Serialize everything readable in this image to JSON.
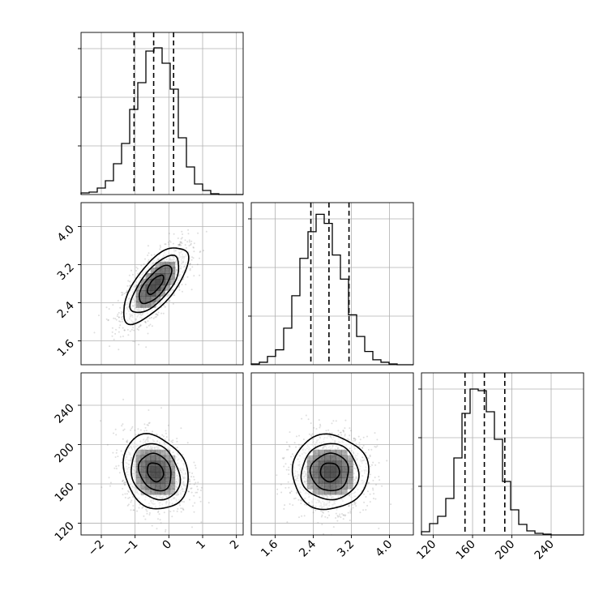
{
  "chart_data": {
    "type": "corner",
    "parameters": [
      {
        "id": "p0",
        "range": [
          -2.6,
          2.2
        ],
        "ticks": [
          -2,
          -1,
          0,
          1,
          2
        ],
        "tick_labels": [
          "−2",
          "−1",
          "0",
          "1",
          "2"
        ]
      },
      {
        "id": "p1",
        "range": [
          1.1,
          4.5
        ],
        "ticks": [
          1.6,
          2.4,
          3.2,
          4.0
        ],
        "tick_labels": [
          "1.6",
          "2.4",
          "3.2",
          "4.0"
        ]
      },
      {
        "id": "p2",
        "range": [
          108,
          273
        ],
        "ticks": [
          120,
          160,
          200,
          240
        ],
        "tick_labels": [
          "120",
          "160",
          "200",
          "240"
        ]
      }
    ],
    "histograms": [
      {
        "param": 0,
        "edges": [
          -2.6,
          -2.36,
          -2.12,
          -1.88,
          -1.64,
          -1.4,
          -1.16,
          -0.92,
          -0.68,
          -0.44,
          -0.2,
          0.04,
          0.28,
          0.52,
          0.76,
          1.0,
          1.24,
          1.48,
          1.72,
          1.96,
          2.2
        ],
        "counts": [
          2,
          3,
          8,
          17,
          38,
          63,
          105,
          138,
          177,
          181,
          162,
          130,
          70,
          34,
          13,
          5,
          1,
          0,
          0,
          0
        ],
        "quantiles": [
          -1.03,
          -0.45,
          0.14
        ],
        "ymax": 200
      },
      {
        "param": 1,
        "edges": [
          1.1,
          1.27,
          1.44,
          1.61,
          1.78,
          1.95,
          2.12,
          2.29,
          2.46,
          2.63,
          2.8,
          2.97,
          3.14,
          3.31,
          3.48,
          3.65,
          3.82,
          3.99,
          4.16,
          4.33,
          4.5
        ],
        "counts": [
          1,
          3,
          10,
          18,
          44,
          83,
          128,
          160,
          181,
          170,
          132,
          103,
          60,
          34,
          16,
          6,
          3,
          1,
          0,
          0
        ],
        "quantiles": [
          2.35,
          2.73,
          3.15
        ],
        "ymax": 195
      },
      {
        "param": 2,
        "edges": [
          108,
          116.25,
          124.5,
          132.75,
          141,
          149.25,
          157.5,
          165.75,
          174,
          182.25,
          190.5,
          198.75,
          207,
          215.25,
          223.5,
          231.75,
          240,
          248.25,
          256.5,
          264.75,
          273
        ],
        "counts": [
          4,
          14,
          23,
          45,
          95,
          150,
          180,
          178,
          152,
          118,
          66,
          31,
          13,
          5,
          2,
          1,
          0,
          0,
          0,
          0
        ],
        "quantiles": [
          152.3,
          172.0,
          192.8
        ],
        "ymax": 200
      }
    ],
    "pairs": [
      {
        "x": 0,
        "y": 1,
        "center": [
          -0.4,
          2.78
        ],
        "sigma": [
          0.48,
          0.4
        ],
        "rho": 0.7
      },
      {
        "x": 0,
        "y": 2,
        "center": [
          -0.4,
          172
        ],
        "sigma": [
          0.48,
          19
        ],
        "rho": -0.2
      },
      {
        "x": 1,
        "y": 2,
        "center": [
          2.75,
          172
        ],
        "sigma": [
          0.4,
          19
        ],
        "rho": 0.0
      }
    ],
    "contour_levels_sigma": [
      0.5,
      1.0,
      1.5,
      2.0
    ],
    "grid": true,
    "colors": {
      "line": "#000000",
      "points": "#888888",
      "density": "#333333",
      "grid": "#b0b0b0"
    }
  }
}
